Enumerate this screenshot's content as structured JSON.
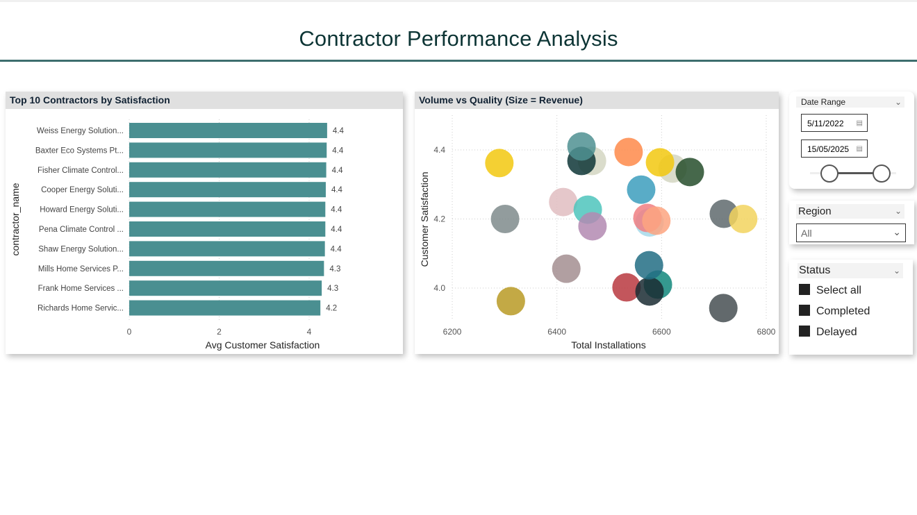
{
  "header": {
    "title": "Contractor Performance Analysis"
  },
  "chart_data": [
    {
      "type": "bar",
      "orientation": "horizontal",
      "title": "Top 10 Contractors by Satisfaction",
      "xlabel": "Avg Customer Satisfaction",
      "ylabel": "contractor_name",
      "xlim": [
        0,
        4.8
      ],
      "xticks": [
        "0",
        "2",
        "4"
      ],
      "grid": true,
      "categories": [
        "Weiss Energy Solution...",
        "Baxter Eco Systems Pt...",
        "Fisher Climate Control...",
        "Cooper Energy Soluti...",
        "Howard Energy Soluti...",
        "Pena Climate Control ...",
        "Shaw Energy Solution...",
        "Mills Home Services P...",
        "Frank Home Services ...",
        "Richards Home Servic..."
      ],
      "values": [
        4.4,
        4.39,
        4.38,
        4.37,
        4.36,
        4.36,
        4.35,
        4.33,
        4.28,
        4.25
      ],
      "data_labels": [
        "4.4",
        "4.4",
        "4.4",
        "4.4",
        "4.4",
        "4.4",
        "4.4",
        "4.3",
        "4.3",
        "4.2"
      ],
      "color": "#4a8f91"
    },
    {
      "type": "scatter",
      "title": "Volume vs Quality (Size = Revenue)",
      "xlabel": "Total Installations",
      "ylabel": "Customer Satisfaction",
      "xlim": [
        6200,
        6800
      ],
      "ylim": [
        3.92,
        4.5
      ],
      "xticks": [
        "6200",
        "6400",
        "6600",
        "6800"
      ],
      "yticks": [
        "4.0",
        "4.2",
        "4.4"
      ],
      "grid": true,
      "points": [
        {
          "x": 6290,
          "y": 4.362,
          "color": "#f2c80f"
        },
        {
          "x": 6301,
          "y": 4.2,
          "color": "#7f8b8c"
        },
        {
          "x": 6312,
          "y": 3.962,
          "color": "#b89a24"
        },
        {
          "x": 6467,
          "y": 4.368,
          "color": "#d4d6c2"
        },
        {
          "x": 6447,
          "y": 4.368,
          "color": "#0e3637"
        },
        {
          "x": 6447,
          "y": 4.41,
          "color": "#4f9092"
        },
        {
          "x": 6537,
          "y": 4.394,
          "color": "#fe8a4a"
        },
        {
          "x": 6621,
          "y": 4.346,
          "color": "#d4d6c2"
        },
        {
          "x": 6597,
          "y": 4.364,
          "color": "#f2c80f"
        },
        {
          "x": 6654,
          "y": 4.336,
          "color": "#264d2c"
        },
        {
          "x": 6561,
          "y": 4.285,
          "color": "#3c9dbd"
        },
        {
          "x": 6412,
          "y": 4.249,
          "color": "#e0bdc1"
        },
        {
          "x": 6459,
          "y": 4.227,
          "color": "#4ec4bc"
        },
        {
          "x": 6468,
          "y": 4.179,
          "color": "#b389b1"
        },
        {
          "x": 6577,
          "y": 4.19,
          "color": "#a6d9ea"
        },
        {
          "x": 6573,
          "y": 4.203,
          "color": "#f07f83"
        },
        {
          "x": 6590,
          "y": 4.195,
          "color": "#fda480"
        },
        {
          "x": 6719,
          "y": 4.215,
          "color": "#5f6a6d"
        },
        {
          "x": 6756,
          "y": 4.2,
          "color": "#f2d35e"
        },
        {
          "x": 6418,
          "y": 4.056,
          "color": "#a38e90"
        },
        {
          "x": 6533,
          "y": 4.002,
          "color": "#b8383f"
        },
        {
          "x": 6593,
          "y": 4.01,
          "color": "#12877b"
        },
        {
          "x": 6577,
          "y": 3.99,
          "color": "#1a2c33"
        },
        {
          "x": 6576,
          "y": 4.066,
          "color": "#226d84"
        },
        {
          "x": 6718,
          "y": 3.942,
          "color": "#474f52"
        }
      ]
    }
  ],
  "slicers": {
    "date": {
      "label": "Date Range",
      "start": "5/11/2022",
      "end": "15/05/2025",
      "range_fraction": [
        0,
        1
      ]
    },
    "region": {
      "label": "Region",
      "value": "All"
    },
    "status": {
      "label": "Status",
      "items": [
        "Select all",
        "Completed",
        "Delayed"
      ]
    }
  }
}
